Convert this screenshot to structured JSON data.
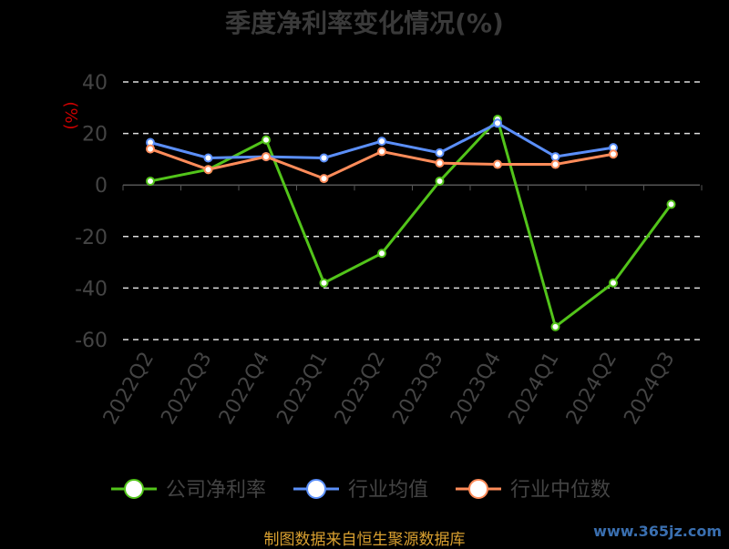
{
  "chart_data": {
    "type": "line",
    "title": "季度净利率变化情况(%)",
    "ylabel": "(%)",
    "xlabel": "",
    "categories": [
      "2022Q2",
      "2022Q3",
      "2022Q4",
      "2023Q1",
      "2023Q2",
      "2023Q3",
      "2023Q4",
      "2024Q1",
      "2024Q2",
      "2024Q3"
    ],
    "ylim": [
      -60,
      40
    ],
    "yticks": [
      "40",
      "20",
      "0",
      "-20",
      "-40",
      "-60"
    ],
    "grid": true,
    "legend_position": "bottom",
    "series": [
      {
        "name": "公司净利率",
        "color": "#52c41a",
        "values": [
          1.5,
          6,
          17.5,
          -38,
          -26.5,
          1.5,
          25.5,
          -55,
          -38,
          -7.5
        ]
      },
      {
        "name": "行业均值",
        "color": "#5b8ff9",
        "values": [
          16.5,
          10.5,
          11,
          10.5,
          17,
          12.5,
          24,
          11,
          14.5,
          null
        ]
      },
      {
        "name": "行业中位数",
        "color": "#ff8c5a",
        "values": [
          14,
          6,
          11,
          2.5,
          13,
          8.5,
          8,
          8,
          12,
          null
        ]
      }
    ]
  },
  "footer": {
    "source": "制图数据来自恒生聚源数据库",
    "watermark": "www.365jz.com"
  }
}
